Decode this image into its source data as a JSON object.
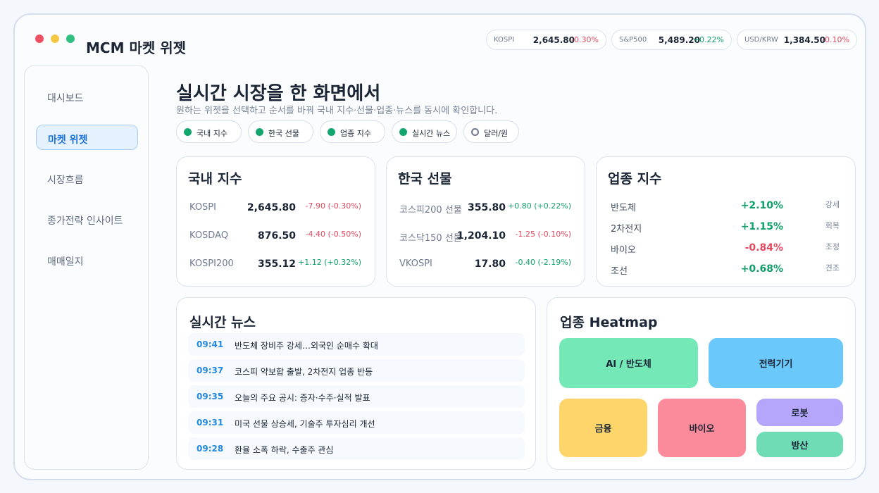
{
  "app": {
    "title": "MCM 마켓 위젯"
  },
  "tickers": [
    {
      "name": "KOSPI",
      "value": "2,645.80",
      "change": "-0.30%"
    },
    {
      "name": "S&P500",
      "value": "5,489.20",
      "change": "+0.22%"
    },
    {
      "name": "USD/KRW",
      "value": "1,384.50",
      "change": "-0.10%"
    }
  ],
  "sidebar": {
    "items": [
      "대시보드",
      "마켓 위젯",
      "시장흐름",
      "종가전략 인사이트",
      "매매일지"
    ]
  },
  "hero": {
    "title": "실시간 시장을 한 화면에서",
    "subtitle": "원하는 위젯을 선택하고 순서를 바꿔 국내 지수·선물·업종·뉴스를 동시에 확인합니다."
  },
  "filters": [
    "국내 지수",
    "한국 선물",
    "업종 지수",
    "실시간 뉴스",
    "달러/원"
  ],
  "domestic": {
    "title": "국내 지수",
    "rows": [
      [
        "KOSPI",
        "2,645.80",
        "-7.90 (-0.30%)"
      ],
      [
        "KOSDAQ",
        "876.50",
        "-4.40 (-0.50%)"
      ],
      [
        "KOSPI200",
        "355.12",
        "+1.12 (+0.32%)"
      ]
    ]
  },
  "futures": {
    "title": "한국 선물",
    "rows": [
      [
        "코스피200 선물",
        "355.80",
        "+0.80 (+0.22%)"
      ],
      [
        "코스닥150 선물",
        "1,204.10",
        "-1.25 (-0.10%)"
      ],
      [
        "VKOSPI",
        "17.80",
        "-0.40 (-2.19%)"
      ]
    ]
  },
  "sectors": {
    "title": "업종 지수",
    "rows": [
      [
        "반도체",
        "+2.10%",
        "강세"
      ],
      [
        "2차전지",
        "+1.15%",
        "회복"
      ],
      [
        "바이오",
        "-0.84%",
        "조정"
      ],
      [
        "조선",
        "+0.68%",
        "견조"
      ]
    ]
  },
  "news": {
    "title": "실시간 뉴스",
    "items": [
      [
        "09:41",
        "반도체 장비주 강세…외국인 순매수 확대"
      ],
      [
        "09:37",
        "코스피 약보합 출발, 2차전지 업종 반등"
      ],
      [
        "09:35",
        "오늘의 주요 공시: 증자·수주·실적 발표"
      ],
      [
        "09:31",
        "미국 선물 상승세, 기술주 투자심리 개선"
      ],
      [
        "09:28",
        "환율 소폭 하락, 수출주 관심"
      ]
    ]
  },
  "heatmap": {
    "title": "업종 Heatmap",
    "tiles": [
      "AI / 반도체",
      "전력기기",
      "금융",
      "바이오",
      "로봇",
      "방산"
    ]
  }
}
